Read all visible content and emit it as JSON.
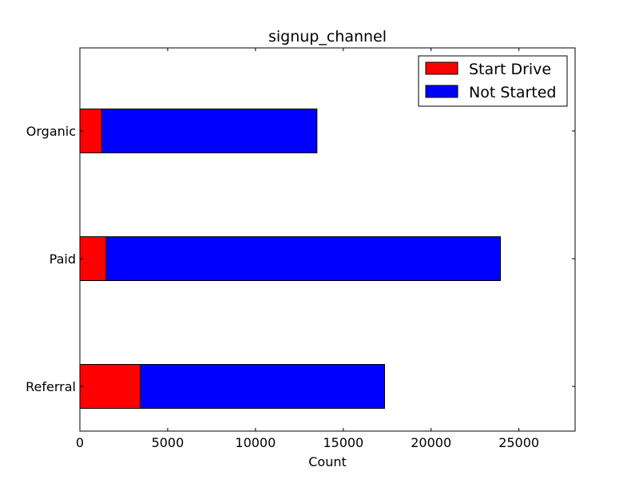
{
  "chart_data": {
    "type": "bar",
    "orientation": "horizontal",
    "stacked": true,
    "title": "signup_channel",
    "xlabel": "Count",
    "ylabel": "",
    "categories": [
      "Organic",
      "Paid",
      "Referral"
    ],
    "series": [
      {
        "name": "Start Drive",
        "color": "#ff0000",
        "values": [
          1250,
          1500,
          3450
        ]
      },
      {
        "name": "Not Started",
        "color": "#0000ff",
        "values": [
          12250,
          22450,
          13900
        ]
      }
    ],
    "xlim": [
      0,
      28200
    ],
    "xticks": [
      0,
      5000,
      10000,
      15000,
      20000,
      25000
    ],
    "legend_position": "top-right",
    "grid": false
  }
}
